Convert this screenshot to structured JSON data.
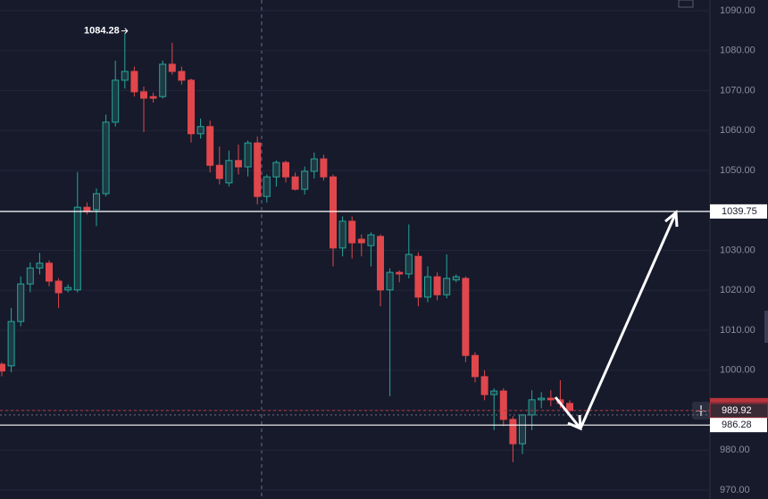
{
  "chart_data": {
    "type": "candlestick",
    "up_color": "#26a69a",
    "down_color": "#e0474c",
    "open": [
      1001.5,
      1001.1,
      1012.2,
      1021.6,
      1025.6,
      1026.8,
      1022.3,
      1020.1,
      1020.1,
      1040.8,
      1040.2,
      1044.2,
      1062.1,
      1072.6,
      1074.8,
      1069.7,
      1068.5,
      1068.5,
      1076.6,
      1074.8,
      1072.6,
      1059.2,
      1061.0,
      1051.3,
      1046.9,
      1052.5,
      1050.9,
      1056.9,
      1043.5,
      1048.4,
      1052.0,
      1048.4,
      1045.3,
      1049.8,
      1052.9,
      1048.4,
      1030.6,
      1037.3,
      1032.8,
      1031.2,
      1033.5,
      1020.1,
      1024.5,
      1024.1,
      1028.5,
      1018.3,
      1023.4,
      1018.9,
      1022.6,
      1023.0,
      1003.7,
      998.4,
      993.9,
      994.8,
      987.7,
      981.6,
      988.8,
      992.6,
      993.0,
      992.6,
      991.7
    ],
    "high": [
      1002.0,
      1015.6,
      1023.5,
      1027.0,
      1029.4,
      1027.5,
      1023.0,
      1021.5,
      1049.6,
      1042.0,
      1045.5,
      1064.0,
      1077.5,
      1084.28,
      1076.0,
      1071.0,
      1069.5,
      1077.5,
      1082.0,
      1076.0,
      1073.0,
      1063.0,
      1062.5,
      1056.0,
      1055.0,
      1056.5,
      1057.5,
      1058.5,
      1049.0,
      1052.5,
      1052.5,
      1049.5,
      1051.0,
      1054.5,
      1054.0,
      1049.0,
      1038.5,
      1038.5,
      1034.0,
      1034.5,
      1034.0,
      1025.5,
      1025.0,
      1036.5,
      1029.5,
      1026.0,
      1024.5,
      1029.0,
      1024.0,
      1023.5,
      1004.5,
      1000.0,
      995.5,
      995.5,
      988.5,
      989.0,
      995.0,
      994.5,
      995.0,
      997.5,
      992.5
    ],
    "low": [
      998.5,
      999.5,
      1011.0,
      1019.5,
      1024.0,
      1021.0,
      1015.6,
      1019.5,
      1019.5,
      1039.0,
      1036.1,
      1043.5,
      1061.0,
      1070.5,
      1068.5,
      1059.6,
      1067.0,
      1068.0,
      1074.0,
      1071.5,
      1057.0,
      1058.0,
      1049.5,
      1046.5,
      1046.0,
      1049.0,
      1048.5,
      1041.5,
      1042.0,
      1046.0,
      1047.0,
      1045.0,
      1044.0,
      1048.0,
      1047.5,
      1026.0,
      1028.5,
      1028.0,
      1028.5,
      1026.0,
      1016.0,
      993.5,
      1022.0,
      1023.0,
      1016.0,
      1017.0,
      1017.5,
      1018.0,
      1022.0,
      1002.0,
      997.0,
      992.5,
      985.0,
      986.0,
      977.0,
      979.0,
      985.0,
      990.5,
      991.0,
      990.5,
      989.5
    ],
    "close": [
      999.8,
      1012.2,
      1021.6,
      1025.6,
      1026.8,
      1022.3,
      1019.4,
      1020.7,
      1040.8,
      1039.7,
      1044.2,
      1062.1,
      1072.6,
      1074.8,
      1069.7,
      1068.1,
      1068.1,
      1076.6,
      1074.8,
      1072.6,
      1059.2,
      1061.0,
      1051.3,
      1048.0,
      1052.5,
      1050.9,
      1056.9,
      1043.5,
      1048.4,
      1052.0,
      1048.4,
      1045.3,
      1049.8,
      1052.9,
      1048.4,
      1030.6,
      1037.3,
      1031.9,
      1031.9,
      1033.9,
      1020.1,
      1024.5,
      1024.1,
      1029.0,
      1018.3,
      1023.4,
      1018.9,
      1023.0,
      1023.4,
      1003.7,
      998.4,
      993.9,
      994.8,
      987.7,
      981.6,
      988.8,
      992.6,
      993.0,
      992.6,
      991.7,
      989.92
    ],
    "ylim": [
      967.77,
      1092.68
    ],
    "yticks": [
      {
        "value": 970,
        "label": "970.00"
      },
      {
        "value": 980,
        "label": "980.00"
      },
      {
        "value": 990,
        "label": "990.00"
      },
      {
        "value": 1000,
        "label": "1000.00"
      },
      {
        "value": 1010,
        "label": "1010.00"
      },
      {
        "value": 1020,
        "label": "1020.00"
      },
      {
        "value": 1030,
        "label": "1030.00"
      },
      {
        "value": 1040,
        "label": "1040.00"
      },
      {
        "value": 1050,
        "label": "1050.00"
      },
      {
        "value": 1060,
        "label": "1060.00"
      },
      {
        "value": 1070,
        "label": "1070.00"
      },
      {
        "value": 1080,
        "label": "1080.00"
      },
      {
        "value": 1090,
        "label": "1090.00"
      }
    ],
    "grid": true,
    "price_lines": [
      {
        "value": 1039.75,
        "color": "#ffffff"
      },
      {
        "value": 986.28,
        "color": "#ffffff"
      }
    ],
    "last_price_color": "#b8343c"
  }
}
